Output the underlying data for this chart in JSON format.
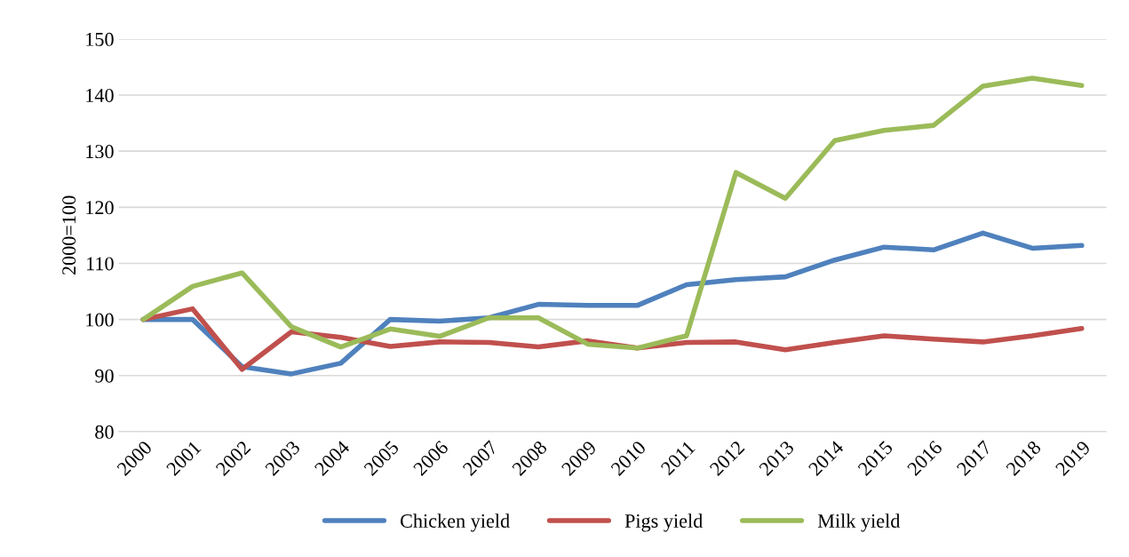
{
  "chart_data": {
    "type": "line",
    "ylabel": "2000=100",
    "categories": [
      "2000",
      "2001",
      "2002",
      "2003",
      "2004",
      "2005",
      "2006",
      "2007",
      "2008",
      "2009",
      "2010",
      "2011",
      "2012",
      "2013",
      "2014",
      "2015",
      "2016",
      "2017",
      "2018",
      "2019"
    ],
    "series": [
      {
        "name": "Chicken yield",
        "color": "#4f81bd",
        "values": [
          100,
          100,
          91.6,
          90.3,
          92.2,
          100,
          99.7,
          100.3,
          102.7,
          102.5,
          102.5,
          106.2,
          107.1,
          107.6,
          110.6,
          112.9,
          112.4,
          115.4,
          112.7,
          113.2
        ]
      },
      {
        "name": "Pigs yield",
        "color": "#c0504d",
        "values": [
          100,
          101.9,
          91.1,
          97.8,
          96.8,
          95.2,
          96.0,
          95.9,
          95.1,
          96.2,
          94.9,
          95.9,
          96.0,
          94.6,
          95.9,
          97.1,
          96.5,
          96.0,
          97.1,
          98.4
        ]
      },
      {
        "name": "Milk yield",
        "color": "#9bbb59",
        "values": [
          100,
          105.9,
          108.3,
          98.7,
          95.1,
          98.3,
          97.0,
          100.3,
          100.3,
          95.6,
          94.9,
          97.1,
          126.2,
          121.6,
          131.9,
          133.7,
          134.6,
          141.6,
          143.0,
          141.7
        ]
      }
    ],
    "ylim": [
      80,
      150
    ],
    "yticks": [
      80,
      90,
      100,
      110,
      120,
      130,
      140,
      150
    ],
    "grid": "y",
    "legend": "bottom",
    "marker": "none",
    "line_style": "solid"
  }
}
